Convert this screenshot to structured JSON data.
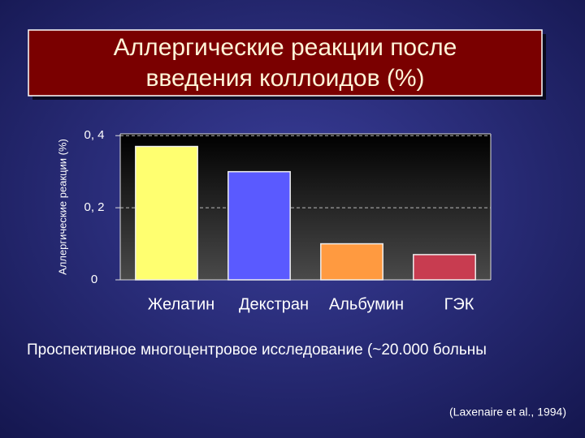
{
  "chart_data": {
    "type": "bar",
    "title": [
      "Аллергические реакции после",
      "введения коллоидов (%)"
    ],
    "y_label": "Аллергические реакции (%)",
    "categories": [
      "Желатин",
      "Декстран",
      "Альбумин",
      "ГЭК"
    ],
    "values": [
      0.37,
      0.3,
      0.1,
      0.07
    ],
    "colors": [
      "#ffff70",
      "#5a5aff",
      "#ff9a40",
      "#c83c50"
    ],
    "ylim": [
      0,
      0.405
    ],
    "yticks": [
      0,
      {
        "value": 0.2,
        "label": "0, 2"
      },
      {
        "value": 0.4,
        "label": "0, 4"
      }
    ],
    "grid": true,
    "note": "Проспективное многоцентровое исследование (~20.000 больны",
    "source": "(Laxenaire et al., 1994)"
  }
}
